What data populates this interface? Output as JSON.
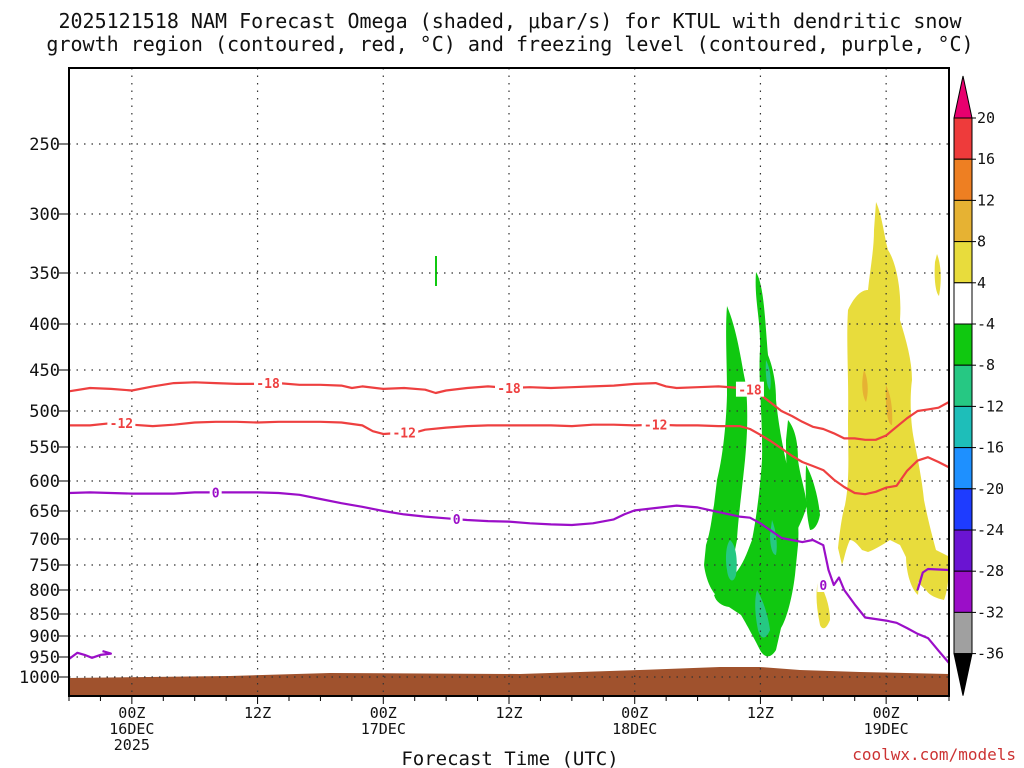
{
  "chart_data": {
    "type": "heatmap",
    "title_lines": [
      "2025121518 NAM Forecast Omega (shaded, μbar/s) for KTUL with dendritic snow",
      "growth region (contoured, red, °C) and freezing level (contoured, purple, °C)"
    ],
    "xlabel": "Forecast Time (UTC)",
    "credit": "coolwx.com/models",
    "x_range_hours": [
      -6,
      78
    ],
    "y_range_hpa": [
      200,
      1025
    ],
    "y_ticks": [
      250,
      300,
      350,
      400,
      450,
      500,
      550,
      600,
      650,
      700,
      750,
      800,
      850,
      900,
      950,
      1000
    ],
    "x_ticks": [
      {
        "h": 0,
        "l1": "00Z",
        "l2": "16DEC",
        "l3": "2025"
      },
      {
        "h": 12,
        "l1": "12Z",
        "l2": "",
        "l3": ""
      },
      {
        "h": 24,
        "l1": "00Z",
        "l2": "17DEC",
        "l3": ""
      },
      {
        "h": 36,
        "l1": "12Z",
        "l2": "",
        "l3": ""
      },
      {
        "h": 48,
        "l1": "00Z",
        "l2": "18DEC",
        "l3": ""
      },
      {
        "h": 60,
        "l1": "12Z",
        "l2": "",
        "l3": ""
      },
      {
        "h": 72,
        "l1": "00Z",
        "l2": "19DEC",
        "l3": ""
      }
    ],
    "colorbar": {
      "labels": [
        "20",
        "16",
        "12",
        "8",
        "4",
        "-4",
        "-8",
        "-12",
        "-16",
        "-20",
        "-24",
        "-28",
        "-32",
        "-36"
      ],
      "colors": [
        "#e8006e",
        "#ee3b3b",
        "#ee7f22",
        "#e6b233",
        "#e8dc3c",
        "#ffffff",
        "#10c810",
        "#26c883",
        "#1ebeb9",
        "#1e90ff",
        "#1e3cff",
        "#6a14d2",
        "#9b0ec8",
        "#a0a0a0",
        "#000000"
      ]
    },
    "contours": [
      {
        "name": "minus-18-line",
        "value": -18,
        "label": "-18",
        "color": "#ee4040",
        "points": [
          [
            -6,
            476
          ],
          [
            -4,
            472
          ],
          [
            -2,
            473
          ],
          [
            0,
            475
          ],
          [
            2,
            470
          ],
          [
            4,
            466
          ],
          [
            6,
            465
          ],
          [
            8,
            466
          ],
          [
            10,
            467
          ],
          [
            12,
            467
          ],
          [
            14,
            466
          ],
          [
            16,
            468
          ],
          [
            18,
            468
          ],
          [
            20,
            469
          ],
          [
            21,
            472
          ],
          [
            22,
            470
          ],
          [
            24,
            473
          ],
          [
            26,
            472
          ],
          [
            28,
            474
          ],
          [
            29,
            478
          ],
          [
            30,
            475
          ],
          [
            32,
            472
          ],
          [
            34,
            470
          ],
          [
            36,
            472
          ],
          [
            38,
            471
          ],
          [
            40,
            472
          ],
          [
            42,
            471
          ],
          [
            44,
            470
          ],
          [
            46,
            469
          ],
          [
            48,
            467
          ],
          [
            50,
            466
          ],
          [
            51,
            470
          ],
          [
            52,
            472
          ],
          [
            54,
            471
          ],
          [
            56,
            470
          ],
          [
            58,
            472
          ],
          [
            59,
            475
          ],
          [
            60,
            480
          ],
          [
            61,
            490
          ],
          [
            62,
            500
          ],
          [
            63,
            507
          ],
          [
            64,
            515
          ],
          [
            65,
            522
          ],
          [
            66,
            525
          ],
          [
            67,
            531
          ],
          [
            68,
            538
          ],
          [
            69,
            538
          ],
          [
            70,
            540
          ],
          [
            71,
            540
          ],
          [
            72,
            534
          ],
          [
            73,
            522
          ],
          [
            74,
            510
          ],
          [
            75,
            500
          ],
          [
            76,
            498
          ],
          [
            77,
            496
          ],
          [
            78,
            489
          ]
        ],
        "label_at": [
          [
            13,
            466
          ],
          [
            36,
            472
          ],
          [
            59,
            474
          ]
        ]
      },
      {
        "name": "minus-12-line",
        "value": -12,
        "label": "-12",
        "color": "#ee4040",
        "points": [
          [
            -6,
            520
          ],
          [
            -4,
            520
          ],
          [
            -2,
            517
          ],
          [
            0,
            519
          ],
          [
            2,
            521
          ],
          [
            4,
            519
          ],
          [
            6,
            516
          ],
          [
            8,
            515
          ],
          [
            10,
            515
          ],
          [
            12,
            516
          ],
          [
            14,
            515
          ],
          [
            16,
            515
          ],
          [
            18,
            515
          ],
          [
            20,
            516
          ],
          [
            22,
            520
          ],
          [
            23,
            528
          ],
          [
            24,
            532
          ],
          [
            26,
            530
          ],
          [
            27,
            530
          ],
          [
            28,
            526
          ],
          [
            30,
            523
          ],
          [
            32,
            521
          ],
          [
            34,
            520
          ],
          [
            36,
            520
          ],
          [
            38,
            520
          ],
          [
            40,
            520
          ],
          [
            42,
            521
          ],
          [
            44,
            519
          ],
          [
            46,
            519
          ],
          [
            48,
            520
          ],
          [
            50,
            519
          ],
          [
            52,
            520
          ],
          [
            54,
            520
          ],
          [
            56,
            521
          ],
          [
            58,
            521
          ],
          [
            59,
            525
          ],
          [
            60,
            533
          ],
          [
            61,
            542
          ],
          [
            62,
            552
          ],
          [
            63,
            563
          ],
          [
            64,
            572
          ],
          [
            65,
            578
          ],
          [
            66,
            584
          ],
          [
            67,
            598
          ],
          [
            68,
            610
          ],
          [
            69,
            620
          ],
          [
            70,
            622
          ],
          [
            71,
            618
          ],
          [
            72,
            611
          ],
          [
            73,
            608
          ],
          [
            74,
            585
          ],
          [
            75,
            570
          ],
          [
            76,
            565
          ],
          [
            77,
            572
          ],
          [
            78,
            580
          ]
        ],
        "label_at": [
          [
            -1,
            517
          ],
          [
            26,
            530
          ],
          [
            50,
            519
          ]
        ]
      },
      {
        "name": "freezing-line",
        "value": 0,
        "label": "0",
        "color": "#9b0ec8",
        "points": [
          [
            -6,
            620
          ],
          [
            -4,
            619
          ],
          [
            -2,
            620
          ],
          [
            0,
            621
          ],
          [
            2,
            621
          ],
          [
            4,
            621
          ],
          [
            6,
            619
          ],
          [
            8,
            619
          ],
          [
            10,
            619
          ],
          [
            12,
            619
          ],
          [
            14,
            620
          ],
          [
            16,
            623
          ],
          [
            18,
            630
          ],
          [
            20,
            637
          ],
          [
            22,
            643
          ],
          [
            24,
            650
          ],
          [
            26,
            656
          ],
          [
            28,
            660
          ],
          [
            30,
            663
          ],
          [
            32,
            666
          ],
          [
            34,
            668
          ],
          [
            36,
            669
          ],
          [
            38,
            672
          ],
          [
            40,
            674
          ],
          [
            42,
            675
          ],
          [
            44,
            672
          ],
          [
            46,
            665
          ],
          [
            47,
            656
          ],
          [
            48,
            649
          ],
          [
            50,
            645
          ],
          [
            52,
            641
          ],
          [
            54,
            644
          ],
          [
            56,
            652
          ],
          [
            58,
            660
          ],
          [
            59,
            662
          ],
          [
            60,
            672
          ],
          [
            61,
            685
          ],
          [
            62,
            698
          ],
          [
            63,
            702
          ],
          [
            64,
            706
          ],
          [
            65,
            702
          ],
          [
            66,
            712
          ],
          [
            66.5,
            760
          ],
          [
            67,
            790
          ],
          [
            67.5,
            775
          ],
          [
            68,
            800
          ],
          [
            69,
            830
          ],
          [
            70,
            858
          ],
          [
            72,
            865
          ],
          [
            73,
            870
          ],
          [
            74,
            882
          ],
          [
            75,
            895
          ],
          [
            76,
            905
          ],
          [
            77,
            935
          ],
          [
            78,
            965
          ]
        ],
        "label_at": [
          [
            8,
            619
          ],
          [
            31,
            664
          ],
          [
            66,
            790
          ]
        ]
      },
      {
        "name": "freezing-line-right",
        "value": 0,
        "label": "",
        "color": "#9b0ec8",
        "points": [
          [
            75,
            800
          ],
          [
            75.5,
            765
          ],
          [
            76,
            758
          ],
          [
            78,
            760
          ]
        ],
        "label_at": []
      },
      {
        "name": "freezing-line-sfc",
        "value": 0,
        "label": "",
        "color": "#9b0ec8",
        "points": [
          [
            -6,
            955
          ],
          [
            -5.2,
            940
          ],
          [
            -4.5,
            945
          ],
          [
            -3.8,
            952
          ],
          [
            -3,
            945
          ],
          [
            -2,
            942
          ],
          [
            -2.8,
            936
          ]
        ],
        "label_at": []
      }
    ]
  }
}
